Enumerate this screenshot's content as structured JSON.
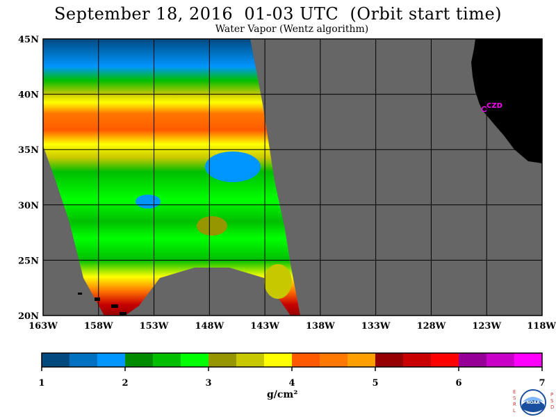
{
  "title": "September 18, 2016  01-03 UTC  (Orbit start time)",
  "subtitle": "Water Vapor (Wentz algorithm)",
  "map": {
    "lat_labels": [
      "45N",
      "40N",
      "35N",
      "30N",
      "25N",
      "20N"
    ],
    "lon_labels": [
      "163W",
      "158W",
      "153W",
      "148W",
      "143W",
      "138W",
      "133W",
      "128W",
      "123W",
      "118W"
    ],
    "station_label": "CZD",
    "colors": {
      "ocean_background": "#666666",
      "land": "#000000",
      "station": "#ff00ff",
      "grid": "#000000"
    },
    "extent": {
      "lon_min": -163,
      "lon_max": -118,
      "lat_min": 20,
      "lat_max": 45
    }
  },
  "colorbar": {
    "labels": [
      "1",
      "2",
      "3",
      "4",
      "5",
      "6",
      "7"
    ],
    "unit": "g/cm²",
    "colors": [
      "#004a80",
      "#0070c0",
      "#0096ff",
      "#008c00",
      "#00be00",
      "#00ff00",
      "#969600",
      "#c8c800",
      "#ffff00",
      "#ff5a00",
      "#ff7800",
      "#ffa000",
      "#960000",
      "#c80000",
      "#ff0000",
      "#960096",
      "#c800c8",
      "#ff00ff"
    ]
  },
  "logo": {
    "letters_left": [
      "E",
      "S",
      "R",
      "L"
    ],
    "letters_right": [
      "P",
      "S",
      "D"
    ],
    "center_text": "NOAA"
  }
}
